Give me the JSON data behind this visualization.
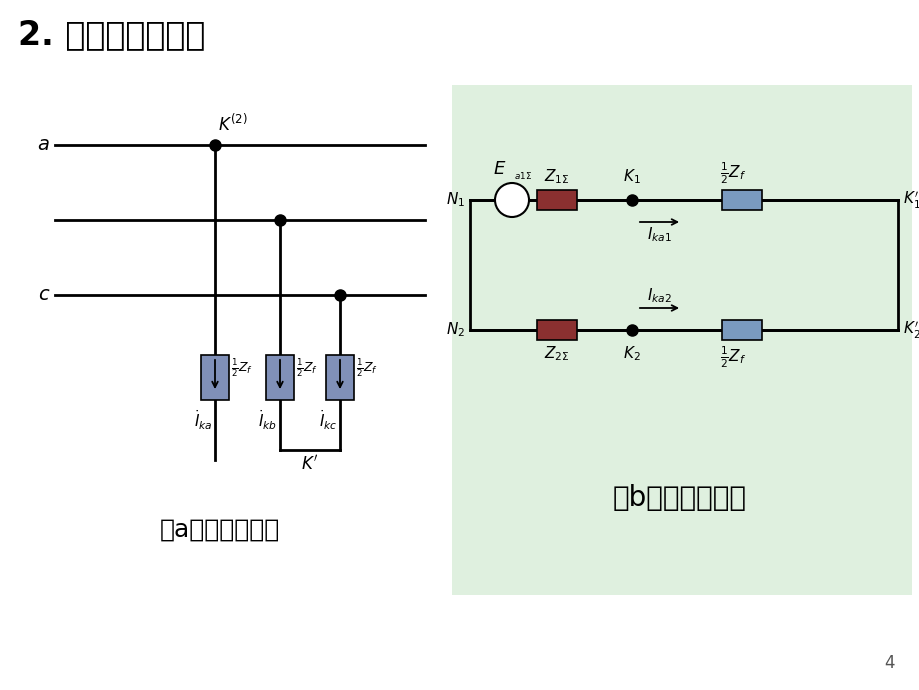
{
  "bg_color": "#ffffff",
  "green_bg": "#dff0df",
  "box_color_red": "#8b3030",
  "box_color_blue": "#7a9abf",
  "box_color_left_blue": "#8090b8",
  "title_cn": "2. 故障点等效变换",
  "caption_a": "（a）系统接线图",
  "caption_b": "（b）复合序网图"
}
